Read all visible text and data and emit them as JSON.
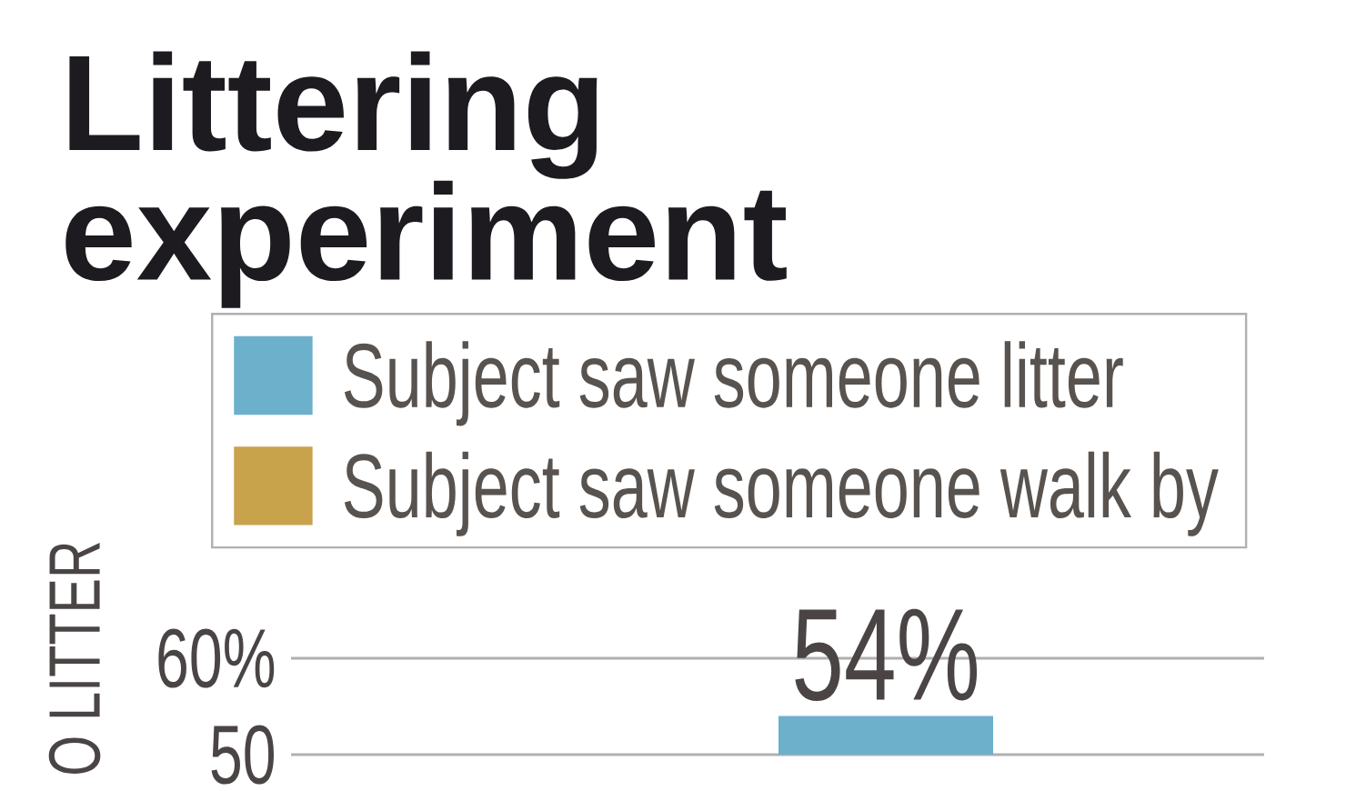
{
  "chart_data": {
    "type": "bar",
    "title": "Littering experiment",
    "ylabel": "O LITTER",
    "categories": [
      null
    ],
    "series": [
      {
        "name": "Subject saw someone litter",
        "color": "#6db0cc",
        "values": [
          54
        ],
        "value_labels": [
          "54%"
        ]
      },
      {
        "name": "Subject saw someone walk by",
        "color": "#c9a24c",
        "values": [
          null
        ]
      }
    ],
    "ylim": [
      50,
      60
    ],
    "yticks": [
      {
        "value": 50,
        "label": "50"
      },
      {
        "value": 60,
        "label": "60%"
      }
    ],
    "grid": "y",
    "legend": "top"
  }
}
